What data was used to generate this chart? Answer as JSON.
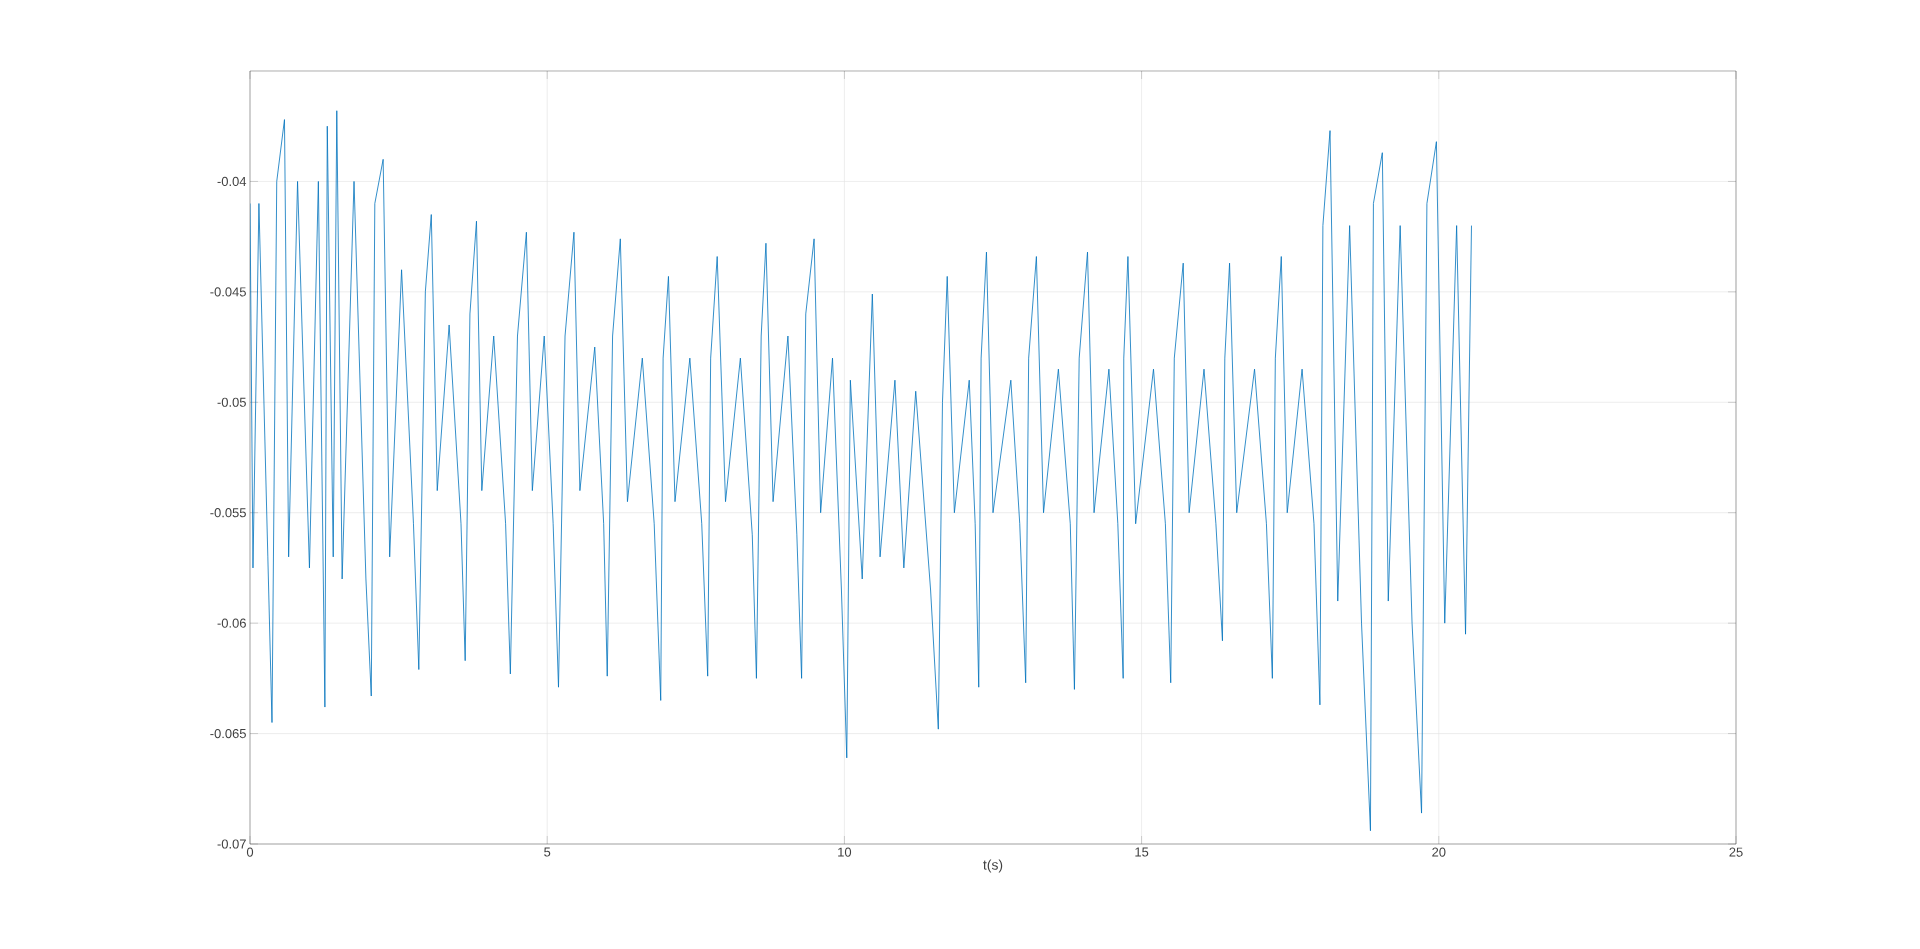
{
  "chart_data": {
    "type": "line",
    "xlabel": "t(s)",
    "xlim": [
      0,
      25
    ],
    "ylim": [
      -0.07,
      -0.035
    ],
    "xticks": [
      0,
      5,
      10,
      15,
      20,
      25
    ],
    "yticks": [
      -0.07,
      -0.065,
      -0.06,
      -0.055,
      -0.05,
      -0.045,
      -0.04
    ],
    "grid": true,
    "marker": "none",
    "line_style": "solid",
    "series": [
      {
        "color": "#0072bd",
        "x": [
          0,
          0.05,
          0.15,
          0.3,
          0.37,
          0.45,
          0.58,
          0.65,
          0.8,
          1.0,
          1.15,
          1.26,
          1.3,
          1.4,
          1.46,
          1.55,
          1.75,
          1.95,
          2.04,
          2.1,
          2.24,
          2.35,
          2.55,
          2.75,
          2.84,
          2.95,
          3.05,
          3.15,
          3.35,
          3.55,
          3.62,
          3.7,
          3.81,
          3.9,
          4.1,
          4.3,
          4.38,
          4.5,
          4.65,
          4.75,
          4.95,
          5.1,
          5.19,
          5.3,
          5.45,
          5.55,
          5.8,
          5.95,
          6.01,
          6.1,
          6.23,
          6.35,
          6.6,
          6.8,
          6.91,
          6.95,
          7.04,
          7.15,
          7.4,
          7.6,
          7.7,
          7.75,
          7.86,
          8.0,
          8.25,
          8.45,
          8.52,
          8.6,
          8.68,
          8.8,
          9.05,
          9.2,
          9.28,
          9.35,
          9.49,
          9.6,
          9.8,
          9.95,
          10.04,
          10.1,
          10.3,
          10.47,
          10.6,
          10.85,
          11.0,
          11.2,
          11.45,
          11.58,
          11.65,
          11.73,
          11.85,
          12.1,
          12.2,
          12.26,
          12.3,
          12.39,
          12.5,
          12.8,
          12.95,
          13.05,
          13.1,
          13.23,
          13.35,
          13.6,
          13.8,
          13.87,
          13.95,
          14.09,
          14.2,
          14.45,
          14.6,
          14.69,
          14.7,
          14.77,
          14.9,
          15.2,
          15.4,
          15.49,
          15.55,
          15.7,
          15.8,
          16.05,
          16.25,
          16.36,
          16.4,
          16.48,
          16.6,
          16.9,
          17.1,
          17.2,
          17.25,
          17.35,
          17.45,
          17.7,
          17.9,
          18.0,
          18.05,
          18.17,
          18.3,
          18.5,
          18.7,
          18.85,
          18.9,
          19.05,
          19.15,
          19.35,
          19.55,
          19.71,
          19.8,
          19.96,
          20.1,
          20.3,
          20.45,
          20.55
        ],
        "values": [
          -0.041,
          -0.0575,
          -0.041,
          -0.057,
          -0.0645,
          -0.04,
          -0.0372,
          -0.057,
          -0.04,
          -0.0575,
          -0.04,
          -0.0638,
          -0.0375,
          -0.057,
          -0.0368,
          -0.058,
          -0.04,
          -0.058,
          -0.0633,
          -0.041,
          -0.039,
          -0.057,
          -0.044,
          -0.0555,
          -0.0621,
          -0.045,
          -0.0415,
          -0.054,
          -0.0465,
          -0.0555,
          -0.0617,
          -0.046,
          -0.0418,
          -0.054,
          -0.047,
          -0.0555,
          -0.0623,
          -0.047,
          -0.0423,
          -0.054,
          -0.047,
          -0.0555,
          -0.0629,
          -0.047,
          -0.0423,
          -0.054,
          -0.0475,
          -0.0555,
          -0.0624,
          -0.047,
          -0.0426,
          -0.0545,
          -0.048,
          -0.0555,
          -0.0635,
          -0.048,
          -0.0443,
          -0.0545,
          -0.048,
          -0.0555,
          -0.0624,
          -0.048,
          -0.0434,
          -0.0545,
          -0.048,
          -0.056,
          -0.0625,
          -0.047,
          -0.0428,
          -0.0545,
          -0.047,
          -0.056,
          -0.0625,
          -0.046,
          -0.0426,
          -0.055,
          -0.048,
          -0.0585,
          -0.0661,
          -0.049,
          -0.058,
          -0.0451,
          -0.057,
          -0.049,
          -0.0575,
          -0.0495,
          -0.0585,
          -0.0648,
          -0.05,
          -0.0443,
          -0.055,
          -0.049,
          -0.0555,
          -0.0629,
          -0.048,
          -0.0432,
          -0.055,
          -0.049,
          -0.0555,
          -0.0627,
          -0.048,
          -0.0434,
          -0.055,
          -0.0485,
          -0.0555,
          -0.063,
          -0.048,
          -0.0432,
          -0.055,
          -0.0485,
          -0.0555,
          -0.0625,
          -0.048,
          -0.0434,
          -0.0555,
          -0.0485,
          -0.0555,
          -0.0627,
          -0.048,
          -0.0437,
          -0.055,
          -0.0485,
          -0.0555,
          -0.0608,
          -0.048,
          -0.0437,
          -0.055,
          -0.0485,
          -0.0555,
          -0.0625,
          -0.048,
          -0.0434,
          -0.055,
          -0.0485,
          -0.0555,
          -0.0637,
          -0.042,
          -0.0377,
          -0.059,
          -0.042,
          -0.06,
          -0.0694,
          -0.041,
          -0.0387,
          -0.059,
          -0.042,
          -0.06,
          -0.0686,
          -0.041,
          -0.0382,
          -0.06,
          -0.042,
          -0.0605,
          -0.042
        ]
      }
    ]
  }
}
